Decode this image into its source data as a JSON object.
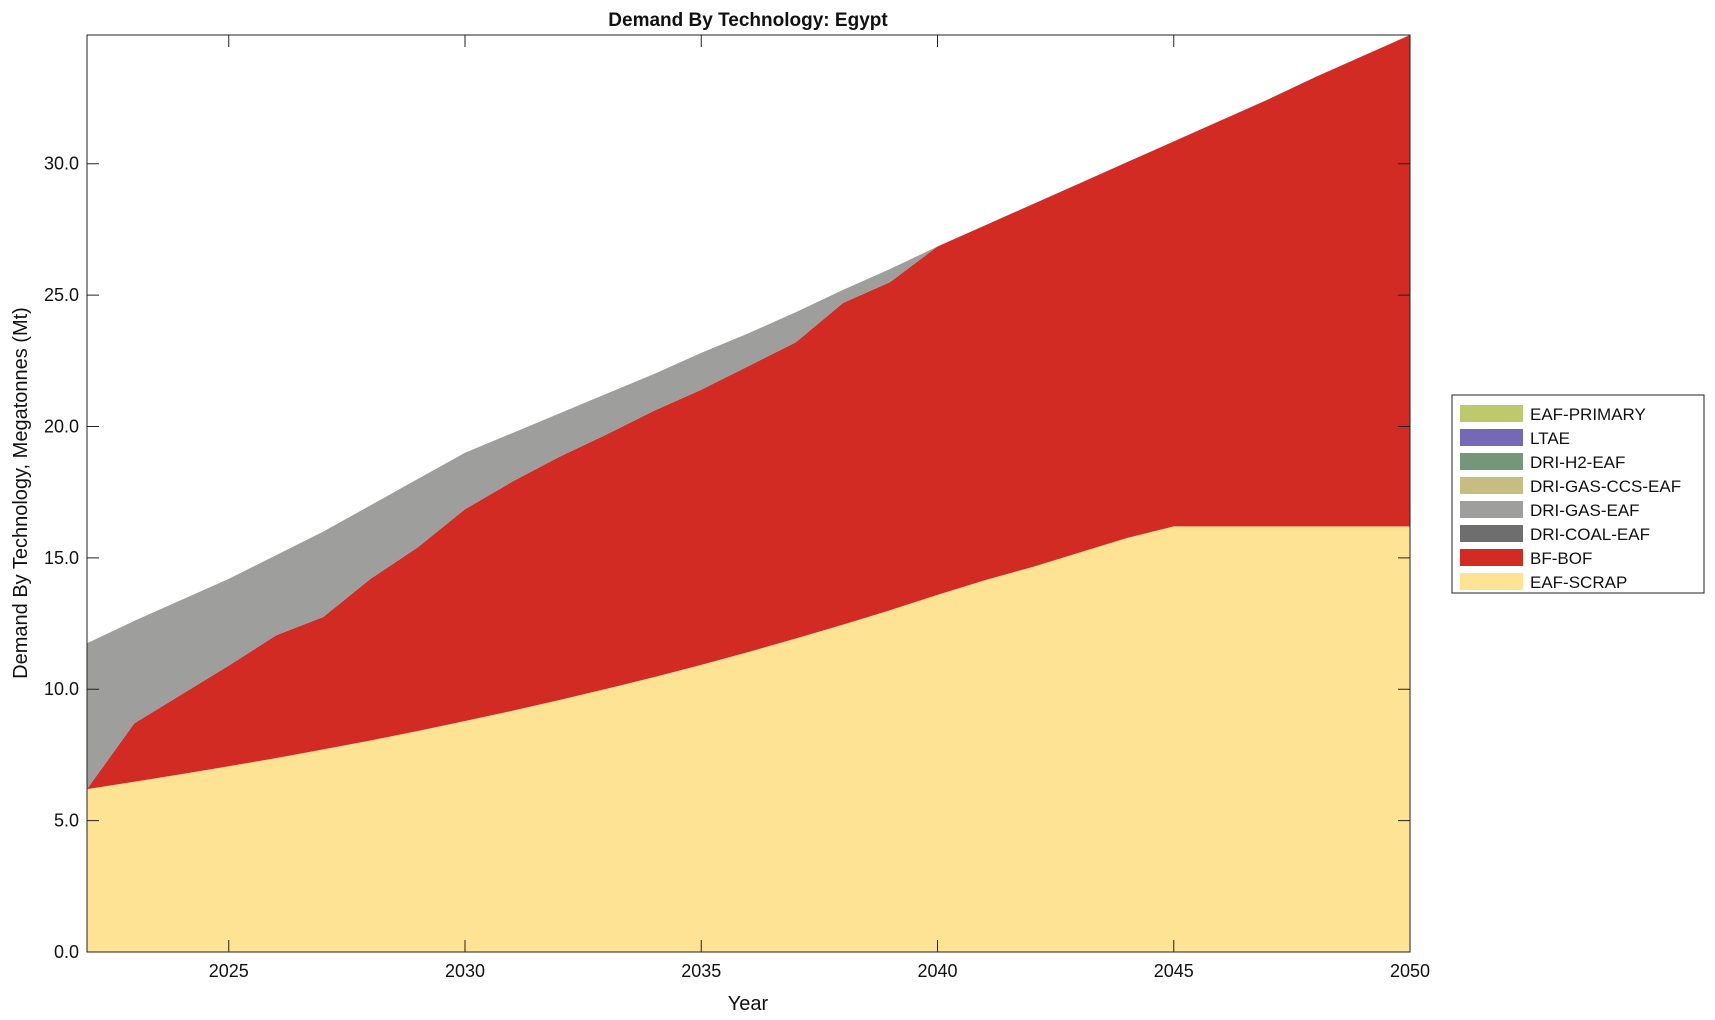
{
  "chart_data": {
    "type": "area",
    "stacked": true,
    "title": "Demand By Technology: Egypt",
    "xlabel": "Year",
    "ylabel": "Demand By Technology, Megatonnes (Mt)",
    "xlim": [
      2022,
      2050
    ],
    "ylim": [
      0,
      34.9
    ],
    "xticks": [
      2025,
      2030,
      2035,
      2040,
      2045,
      2050
    ],
    "yticks": [
      "0.0",
      "5.0",
      "10.0",
      "15.0",
      "20.0",
      "25.0",
      "30.0"
    ],
    "legend_position": "right",
    "x": [
      2022,
      2023,
      2024,
      2025,
      2026,
      2027,
      2028,
      2029,
      2030,
      2031,
      2032,
      2033,
      2034,
      2035,
      2036,
      2037,
      2038,
      2039,
      2040,
      2041,
      2042,
      2043,
      2044,
      2045,
      2046,
      2047,
      2048,
      2049,
      2050
    ],
    "series": [
      {
        "name": "EAF-SCRAP",
        "color": "#fee394",
        "values": [
          6.2,
          6.48,
          6.77,
          7.07,
          7.38,
          7.71,
          8.05,
          8.41,
          8.79,
          9.18,
          9.59,
          10.02,
          10.46,
          10.93,
          11.42,
          11.93,
          12.46,
          13.01,
          13.59,
          14.15,
          14.65,
          15.2,
          15.75,
          16.2,
          16.2,
          16.2,
          16.2,
          16.2,
          16.2
        ]
      },
      {
        "name": "BF-BOF",
        "color": "#d22b24",
        "values": [
          0,
          2.22,
          3.03,
          3.83,
          4.67,
          5.04,
          6.15,
          6.99,
          8.06,
          8.72,
          9.26,
          9.68,
          10.14,
          10.47,
          10.88,
          11.27,
          12.24,
          12.49,
          13.26,
          13.5,
          13.8,
          14.05,
          14.3,
          14.65,
          15.45,
          16.25,
          17.1,
          17.9,
          18.7
        ]
      },
      {
        "name": "DRI-COAL-EAF",
        "color": "#6e6e6e",
        "values": [
          0,
          0,
          0,
          0,
          0,
          0,
          0,
          0,
          0,
          0,
          0,
          0,
          0,
          0,
          0,
          0,
          0,
          0,
          0,
          0,
          0,
          0,
          0,
          0,
          0,
          0,
          0,
          0,
          0
        ]
      },
      {
        "name": "DRI-GAS-EAF",
        "color": "#9e9e9c",
        "values": [
          5.55,
          3.9,
          3.6,
          3.3,
          3.05,
          3.25,
          2.8,
          2.6,
          2.15,
          1.85,
          1.65,
          1.55,
          1.4,
          1.4,
          1.25,
          1.15,
          0.5,
          0.5,
          0,
          0,
          0,
          0,
          0,
          0,
          0,
          0,
          0,
          0,
          0
        ]
      },
      {
        "name": "DRI-GAS-CCS-EAF",
        "color": "#c7bd80",
        "values": [
          0,
          0,
          0,
          0,
          0,
          0,
          0,
          0,
          0,
          0,
          0,
          0,
          0,
          0,
          0,
          0,
          0,
          0,
          0,
          0,
          0,
          0,
          0,
          0,
          0,
          0,
          0,
          0,
          0
        ]
      },
      {
        "name": "DRI-H2-EAF",
        "color": "#74977a",
        "values": [
          0,
          0,
          0,
          0,
          0,
          0,
          0,
          0,
          0,
          0,
          0,
          0,
          0,
          0,
          0,
          0,
          0,
          0,
          0,
          0,
          0,
          0,
          0,
          0,
          0,
          0,
          0,
          0,
          0
        ]
      },
      {
        "name": "LTAE",
        "color": "#7569b5",
        "values": [
          0,
          0,
          0,
          0,
          0,
          0,
          0,
          0,
          0,
          0,
          0,
          0,
          0,
          0,
          0,
          0,
          0,
          0,
          0,
          0,
          0,
          0,
          0,
          0,
          0,
          0,
          0,
          0,
          0
        ]
      },
      {
        "name": "EAF-PRIMARY",
        "color": "#bec86c",
        "values": [
          0,
          0,
          0,
          0,
          0,
          0,
          0,
          0,
          0,
          0,
          0,
          0,
          0,
          0,
          0,
          0,
          0,
          0,
          0,
          0,
          0,
          0,
          0,
          0,
          0,
          0,
          0,
          0,
          0
        ]
      }
    ]
  }
}
